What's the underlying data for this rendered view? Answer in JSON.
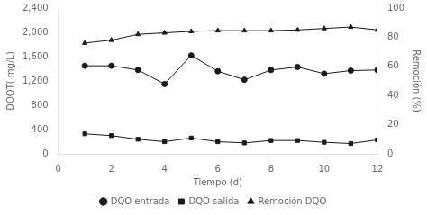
{
  "chart_data": {
    "type": "line",
    "xlabel": "Tiempo (d)",
    "ylabel": "DQOT( mg/L)",
    "y2label": "Remoción (%)",
    "x": [
      1,
      2,
      3,
      4,
      5,
      6,
      7,
      8,
      9,
      10,
      11,
      12
    ],
    "series": [
      {
        "name": "DQO entrada",
        "values": [
          1450,
          1450,
          1380,
          1150,
          1620,
          1360,
          1220,
          1380,
          1430,
          1320,
          1370,
          1380
        ],
        "marker": "circle"
      },
      {
        "name": "DQO salida",
        "values": [
          330,
          300,
          240,
          200,
          260,
          200,
          180,
          220,
          220,
          190,
          170,
          230
        ],
        "marker": "square"
      },
      {
        "name": "Remoción DQO",
        "values": [
          76,
          78,
          82,
          83,
          84,
          84.5,
          84.5,
          84.5,
          85,
          86,
          87,
          85
        ],
        "marker": "triangle",
        "axis": "y2"
      }
    ],
    "color": "#1a1a1a",
    "xlim": [
      0,
      12
    ],
    "xticks": [
      0,
      2,
      4,
      6,
      8,
      10,
      12
    ],
    "ylim": [
      0,
      2400
    ],
    "yticks": [
      0,
      400,
      800,
      1200,
      1600,
      2000,
      2400
    ],
    "y2lim": [
      0,
      100
    ],
    "y2ticks": [
      0,
      20,
      40,
      60,
      80,
      100
    ],
    "grid": false,
    "legend": "bottom"
  }
}
